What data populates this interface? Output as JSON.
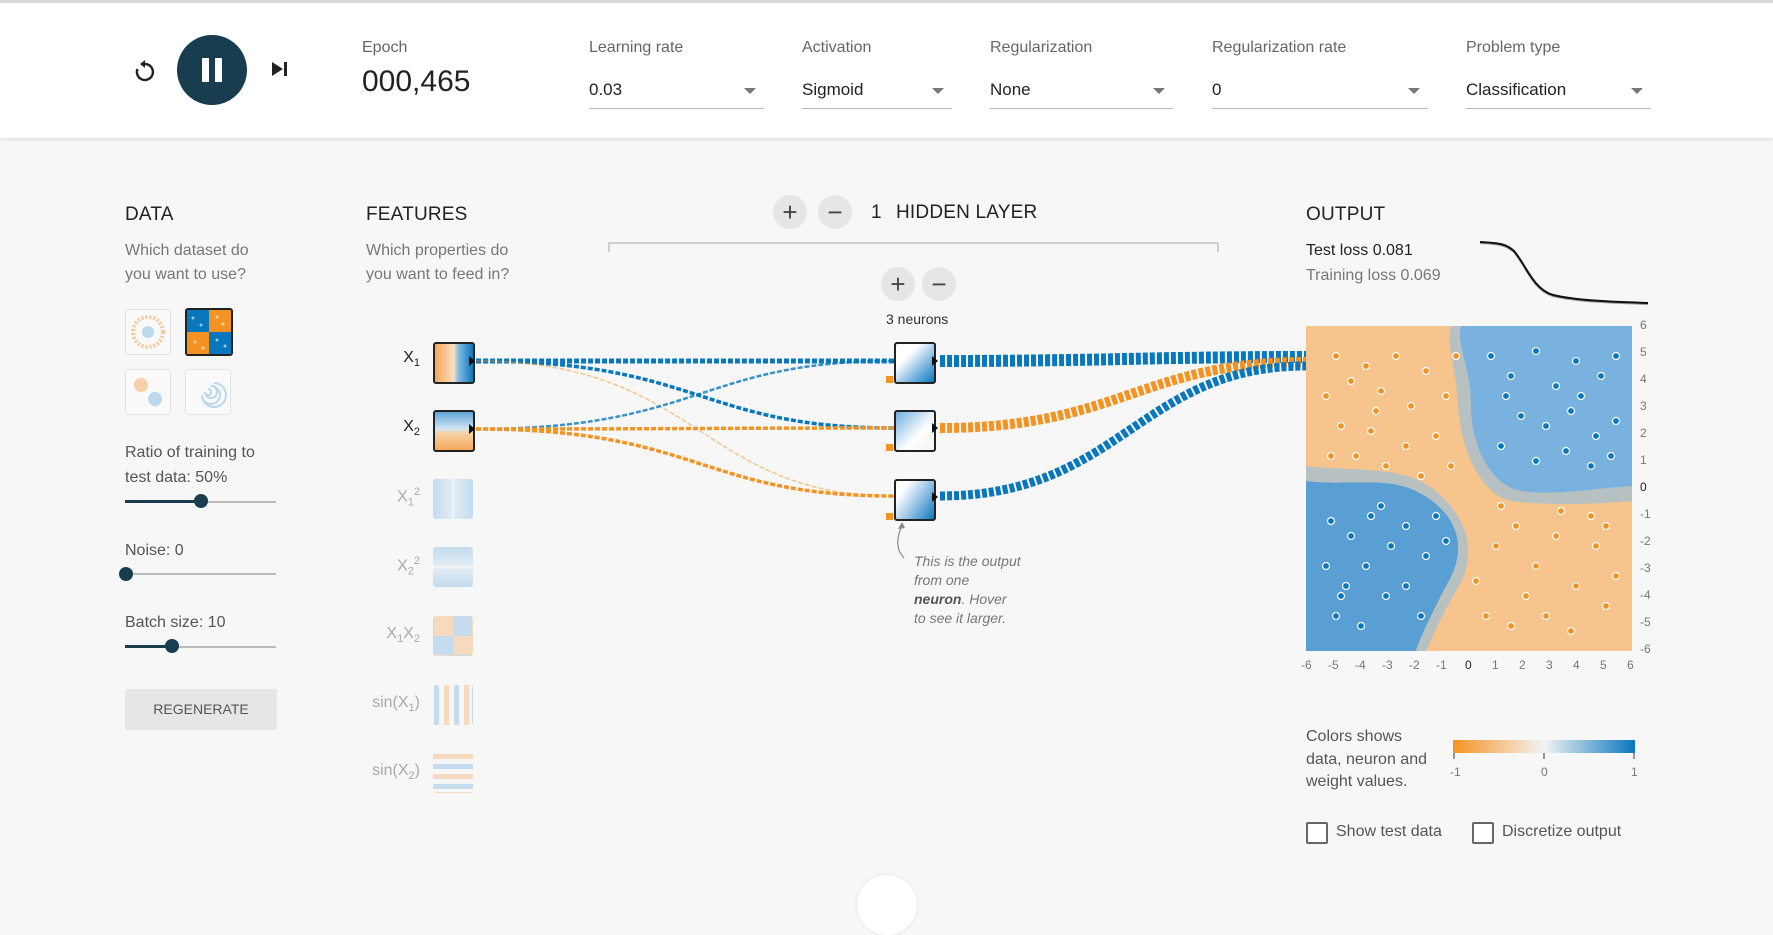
{
  "controls": {
    "reset_icon": "reset-icon",
    "play_pause_icon": "pause-icon",
    "step_icon": "step-forward-icon"
  },
  "epoch": {
    "label": "Epoch",
    "value": "000,465"
  },
  "dropdowns": {
    "learning_rate": {
      "label": "Learning rate",
      "value": "0.03"
    },
    "activation": {
      "label": "Activation",
      "value": "Sigmoid"
    },
    "regularization": {
      "label": "Regularization",
      "value": "None"
    },
    "regularization_rate": {
      "label": "Regularization rate",
      "value": "0"
    },
    "problem_type": {
      "label": "Problem type",
      "value": "Classification"
    }
  },
  "data_panel": {
    "title": "DATA",
    "question_line1": "Which dataset do",
    "question_line2": "you want to use?",
    "ratio_line1": "Ratio of training to",
    "ratio_line2": "test data:  50%",
    "ratio_value": 50,
    "noise_label": "Noise:  0",
    "noise_value": 0,
    "batch_label": "Batch size:  10",
    "batch_value": 10,
    "regenerate": "REGENERATE"
  },
  "features_panel": {
    "title": "FEATURES",
    "question_line1": "Which properties do",
    "question_line2": "you want to feed in?",
    "features": [
      {
        "name": "X",
        "sub": "1",
        "sup": "",
        "active": true
      },
      {
        "name": "X",
        "sub": "2",
        "sup": "",
        "active": true
      },
      {
        "name": "X",
        "sub": "1",
        "sup": "2",
        "active": false
      },
      {
        "name": "X",
        "sub": "2",
        "sup": "2",
        "active": false
      },
      {
        "name": "X",
        "sub": "1",
        "name2": "X",
        "sub2": "2",
        "active": false
      },
      {
        "name": "sin(X",
        "sub": "1",
        "post": ")",
        "active": false
      },
      {
        "name": "sin(X",
        "sub": "2",
        "post": ")",
        "active": false
      }
    ]
  },
  "network": {
    "layer_count": "1",
    "layer_label": "HIDDEN LAYER",
    "neurons_label": "3 neurons",
    "note_line1": "This is the output",
    "note_line2": "from one",
    "note_bold": "neuron",
    "note_line3_rest": ". Hover",
    "note_line4": "to see it larger."
  },
  "output_panel": {
    "title": "OUTPUT",
    "test_loss": "Test loss 0.081",
    "training_loss": "Training loss 0.069",
    "x_ticks": [
      "-6",
      "-5",
      "-4",
      "-3",
      "-2",
      "-1",
      "0",
      "1",
      "2",
      "3",
      "4",
      "5",
      "6"
    ],
    "y_ticks": [
      "6",
      "5",
      "4",
      "3",
      "2",
      "1",
      "0",
      "-1",
      "-2",
      "-3",
      "-4",
      "-5",
      "-6"
    ],
    "legend_line1": "Colors shows",
    "legend_line2": "data, neuron and",
    "legend_line3": "weight values.",
    "legend_min": "-1",
    "legend_mid": "0",
    "legend_max": "1",
    "show_test_data": "Show test data",
    "discretize_output": "Discretize output"
  },
  "colors": {
    "blue": "#0877bd",
    "orange": "#f59322",
    "dark": "#183d4e"
  }
}
